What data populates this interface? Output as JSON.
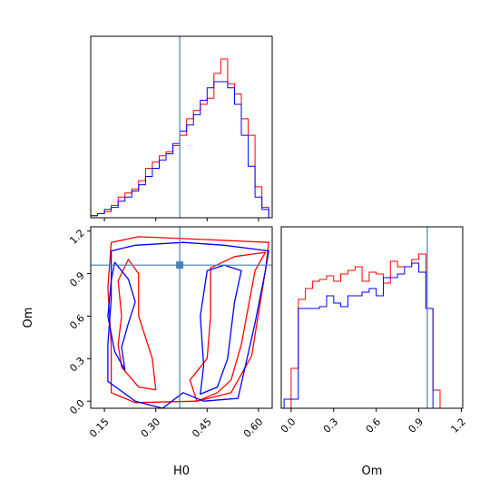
{
  "chart_data": {
    "type": "corner",
    "params": [
      "H0",
      "Om"
    ],
    "truth": {
      "H0": 0.37,
      "Om": 0.96
    },
    "colors": {
      "red": "#ff0000",
      "blue": "#0000ff",
      "truth": "#4682b4"
    },
    "panels": [
      {
        "id": "hist-H0",
        "type": "histogram",
        "xlim": [
          0.11,
          0.64
        ],
        "ylim": [
          0,
          0.088
        ],
        "bin_edges": [
          0.11,
          0.13,
          0.15,
          0.17,
          0.19,
          0.21,
          0.23,
          0.25,
          0.27,
          0.29,
          0.31,
          0.33,
          0.35,
          0.37,
          0.39,
          0.41,
          0.43,
          0.45,
          0.47,
          0.49,
          0.51,
          0.53,
          0.55,
          0.57,
          0.59,
          0.61,
          0.63
        ],
        "series": [
          {
            "color": "red",
            "values": [
              0.001,
              0.002,
              0.003,
              0.006,
              0.01,
              0.012,
              0.014,
              0.018,
              0.024,
              0.027,
              0.03,
              0.032,
              0.035,
              0.04,
              0.048,
              0.052,
              0.055,
              0.058,
              0.07,
              0.077,
              0.065,
              0.06,
              0.048,
              0.04,
              0.015,
              0.005
            ]
          },
          {
            "color": "blue",
            "values": [
              0.001,
              0.002,
              0.004,
              0.005,
              0.008,
              0.01,
              0.013,
              0.016,
              0.02,
              0.024,
              0.028,
              0.031,
              0.036,
              0.042,
              0.045,
              0.05,
              0.057,
              0.063,
              0.066,
              0.066,
              0.063,
              0.055,
              0.04,
              0.025,
              0.01,
              0.004
            ]
          }
        ]
      },
      {
        "id": "contour-H0-Om",
        "type": "contour",
        "xlim": [
          0.11,
          0.64
        ],
        "ylim": [
          -0.05,
          1.23
        ],
        "xticks": [
          "0.15",
          "0.30",
          "0.45",
          "0.60"
        ],
        "yticks": [
          "0.0",
          "0.3",
          "0.6",
          "0.9",
          "1.2"
        ],
        "xlabel": "H0",
        "ylabel": "Om",
        "contours": [
          {
            "color": "red",
            "points": [
              [
                0.17,
                0.06
              ],
              [
                0.24,
                -0.01
              ],
              [
                0.42,
                0.0
              ],
              [
                0.52,
                0.06
              ],
              [
                0.58,
                0.32
              ],
              [
                0.62,
                0.92
              ],
              [
                0.63,
                1.12
              ],
              [
                0.45,
                1.14
              ],
              [
                0.25,
                1.16
              ],
              [
                0.17,
                1.12
              ],
              [
                0.16,
                0.8
              ],
              [
                0.17,
                0.4
              ]
            ]
          },
          {
            "color": "red",
            "points": [
              [
                0.2,
                0.24
              ],
              [
                0.25,
                0.1
              ],
              [
                0.3,
                0.08
              ],
              [
                0.29,
                0.3
              ],
              [
                0.25,
                0.6
              ],
              [
                0.25,
                0.9
              ],
              [
                0.22,
                1.0
              ],
              [
                0.19,
                0.85
              ],
              [
                0.2,
                0.6
              ],
              [
                0.19,
                0.4
              ]
            ]
          },
          {
            "color": "red",
            "points": [
              [
                0.42,
                0.0
              ],
              [
                0.48,
                0.06
              ],
              [
                0.52,
                0.15
              ],
              [
                0.55,
                0.4
              ],
              [
                0.59,
                0.92
              ],
              [
                0.62,
                1.05
              ],
              [
                0.53,
                1.02
              ],
              [
                0.46,
                0.94
              ],
              [
                0.46,
                0.6
              ],
              [
                0.45,
                0.3
              ],
              [
                0.4,
                0.15
              ]
            ]
          },
          {
            "color": "blue",
            "points": [
              [
                0.16,
                0.14
              ],
              [
                0.24,
                0.0
              ],
              [
                0.32,
                -0.05
              ],
              [
                0.38,
                0.06
              ],
              [
                0.44,
                0.0
              ],
              [
                0.54,
                0.02
              ],
              [
                0.59,
                0.55
              ],
              [
                0.62,
                0.92
              ],
              [
                0.63,
                1.06
              ],
              [
                0.5,
                1.1
              ],
              [
                0.38,
                1.12
              ],
              [
                0.24,
                1.1
              ],
              [
                0.17,
                1.06
              ],
              [
                0.17,
                0.72
              ],
              [
                0.16,
                0.4
              ]
            ]
          },
          {
            "color": "blue",
            "points": [
              [
                0.18,
                0.98
              ],
              [
                0.22,
                0.86
              ],
              [
                0.24,
                0.7
              ],
              [
                0.22,
                0.55
              ],
              [
                0.2,
                0.38
              ],
              [
                0.21,
                0.22
              ],
              [
                0.18,
                0.35
              ],
              [
                0.16,
                0.6
              ],
              [
                0.17,
                0.85
              ]
            ]
          },
          {
            "color": "blue",
            "points": [
              [
                0.43,
                0.05
              ],
              [
                0.48,
                0.1
              ],
              [
                0.51,
                0.3
              ],
              [
                0.53,
                0.7
              ],
              [
                0.55,
                0.92
              ],
              [
                0.5,
                0.96
              ],
              [
                0.45,
                0.92
              ],
              [
                0.43,
                0.6
              ],
              [
                0.44,
                0.25
              ]
            ]
          }
        ]
      },
      {
        "id": "hist-Om",
        "type": "histogram",
        "xlim": [
          -0.07,
          1.21
        ],
        "ylim": [
          0,
          1.0
        ],
        "xticks": [
          "0.0",
          "0.3",
          "0.6",
          "0.9",
          "1.2"
        ],
        "xlabel": "Om",
        "bin_edges": [
          -0.05,
          0.0,
          0.05,
          0.1,
          0.15,
          0.2,
          0.25,
          0.3,
          0.35,
          0.4,
          0.45,
          0.5,
          0.55,
          0.6,
          0.65,
          0.7,
          0.75,
          0.8,
          0.85,
          0.9,
          0.95,
          1.0,
          1.05,
          1.1,
          1.15
        ],
        "series": [
          {
            "color": "red",
            "values": [
              0.0,
              0.22,
              0.6,
              0.66,
              0.7,
              0.71,
              0.73,
              0.7,
              0.74,
              0.76,
              0.78,
              0.7,
              0.75,
              0.74,
              0.69,
              0.81,
              0.78,
              0.78,
              0.82,
              0.85,
              0.55,
              0.1,
              0.0,
              0.0
            ]
          },
          {
            "color": "blue",
            "values": [
              0.05,
              0.05,
              0.55,
              0.55,
              0.55,
              0.56,
              0.62,
              0.58,
              0.56,
              0.62,
              0.62,
              0.64,
              0.66,
              0.62,
              0.72,
              0.72,
              0.74,
              0.78,
              0.8,
              0.75,
              0.55,
              0.0,
              0.0,
              0.0
            ]
          }
        ]
      }
    ]
  }
}
